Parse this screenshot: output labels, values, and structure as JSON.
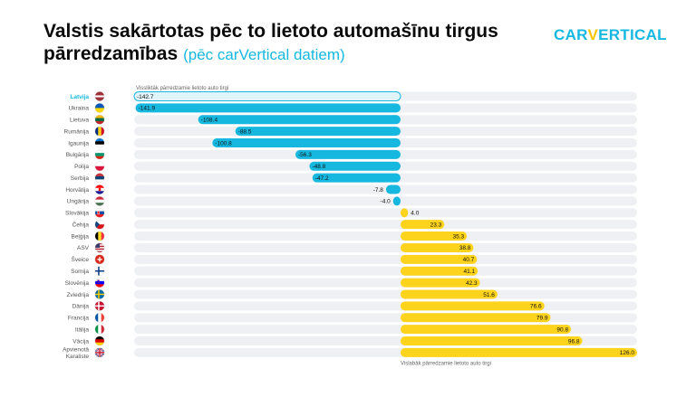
{
  "header": {
    "title": "Valstis sakārtotas pēc to lietoto automašīnu tirgus pārredzamības",
    "subtitle": "(pēc carVertical datiem)",
    "logo_left": "CAR",
    "logo_v": "V",
    "logo_right": "ERTICAL"
  },
  "colors": {
    "negative": "#16b8e0",
    "negative_highlight": "#dff4fb",
    "positive": "#fdd31c",
    "track": "#eef0f3",
    "label": "#555555",
    "highlight_label": "#16b8e0"
  },
  "chart_data": {
    "type": "bar",
    "orientation": "horizontal",
    "top_note": "Vissliktāk pārredzamie lietoto auto tirgi",
    "bottom_note": "Vislabāk pārredzamie lietoto auto tirgi",
    "highlight": "Latvija",
    "categories": [
      "Latvija",
      "Ukraina",
      "Lietuva",
      "Rumānija",
      "Igaunija",
      "Bulgārija",
      "Polija",
      "Serbija",
      "Horvātija",
      "Ungārija",
      "Slovākija",
      "Čehija",
      "Beļģija",
      "ASV",
      "Šveice",
      "Somija",
      "Slovēnija",
      "Zviedrija",
      "Dānija",
      "Francija",
      "Itālija",
      "Vācija",
      "Apvienotā Karaliste"
    ],
    "values": [
      -142.7,
      -141.9,
      -108.4,
      -88.5,
      -100.8,
      -56.3,
      -48.8,
      -47.2,
      -7.8,
      -4.0,
      4.0,
      23.3,
      35.3,
      38.8,
      40.7,
      41.1,
      42.3,
      51.6,
      76.6,
      79.9,
      90.8,
      96.8,
      126.0
    ],
    "labels": [
      "-142.7",
      "-141.9",
      "-108.4",
      "-88.5",
      "-100.8",
      "-56.3",
      "-48.8",
      "-47.2",
      "-7.8",
      "-4.0",
      "4.0",
      "23.3",
      "35.3",
      "38.8",
      "40.7",
      "41.1",
      "42.3",
      "51.6",
      "76.6",
      "79.9",
      "90.8",
      "96.8",
      "126.0"
    ],
    "flags": [
      "lv",
      "ua",
      "lt",
      "ro",
      "ee",
      "bg",
      "pl",
      "rs",
      "hr",
      "hu",
      "sk",
      "cz",
      "be",
      "us",
      "ch",
      "fi",
      "si",
      "se",
      "dk",
      "fr",
      "it",
      "de",
      "gb"
    ],
    "xlim": [
      -142.7,
      126.0
    ]
  }
}
